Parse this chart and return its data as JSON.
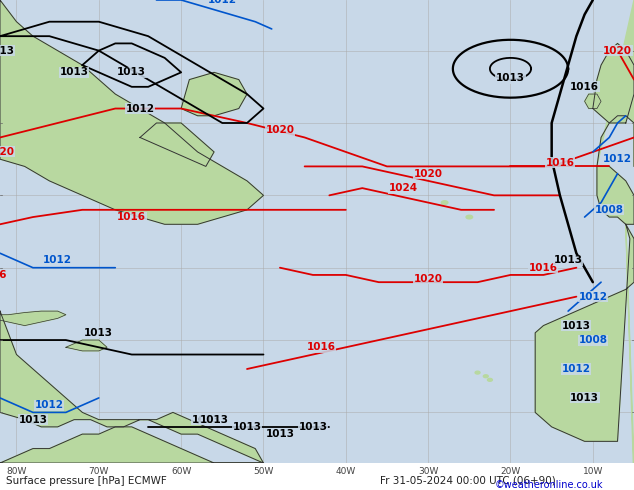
{
  "title_bottom_left": "Surface pressure [hPa] ECMWF",
  "title_bottom_right": "Fr 31-05-2024 00:00 UTC (06+90)",
  "copyright": "©weatheronline.co.uk",
  "ocean_color": "#c8d8e8",
  "land_color": "#b8d8a0",
  "fig_width": 6.34,
  "fig_height": 4.9,
  "dpi": 100,
  "grid_color": "#aaaaaa",
  "bottom_bar_color": "#e0e0e0",
  "bottom_text_color": "#222222",
  "copyright_color": "#0000cc",
  "lon_min": -82,
  "lon_max": -5,
  "lat_min": 3,
  "lat_max": 67
}
